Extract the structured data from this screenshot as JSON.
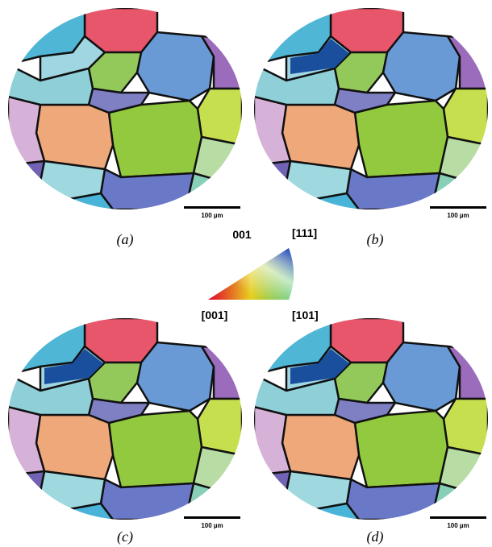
{
  "panels": [
    {
      "label": "(a)",
      "scale_bar": "100 µm"
    },
    {
      "label": "(b)",
      "scale_bar": "100 µm"
    },
    {
      "label": "(c)",
      "scale_bar": "100 µm"
    },
    {
      "label": "(d)",
      "scale_bar": "100 µm"
    }
  ],
  "legend": {
    "title": "001",
    "corners": [
      "[111]",
      "[001]",
      "[101]"
    ]
  }
}
